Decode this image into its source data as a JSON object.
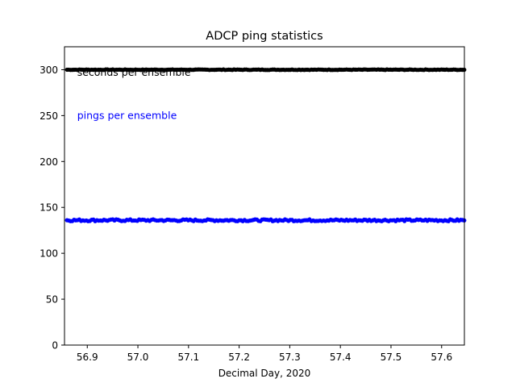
{
  "chart_data": {
    "type": "scatter",
    "title": "ADCP  ping statistics",
    "xlabel": "Decimal Day, 2020",
    "ylabel": "",
    "xlim": [
      56.855,
      57.645
    ],
    "ylim": [
      0,
      325
    ],
    "xticks": [
      56.9,
      57.0,
      57.1,
      57.2,
      57.3,
      57.4,
      57.5,
      57.6
    ],
    "xtick_labels": [
      "56.9",
      "57.0",
      "57.1",
      "57.2",
      "57.3",
      "57.4",
      "57.5",
      "57.6"
    ],
    "yticks": [
      0,
      50,
      100,
      150,
      200,
      250,
      300
    ],
    "ytick_labels": [
      "0",
      "50",
      "100",
      "150",
      "200",
      "250",
      "300"
    ],
    "grid": false,
    "x_start": 56.86,
    "x_end": 57.645,
    "series": [
      {
        "name": "seconds per ensemble",
        "color": "#000000",
        "value": 300,
        "jitter": 0.3
      },
      {
        "name": "pings per ensemble",
        "color": "#0000ff",
        "value": 136,
        "jitter": 1.0
      }
    ],
    "annotations": [
      {
        "text": "seconds per ensemble",
        "color": "#000000",
        "x": 56.88,
        "y": 297
      },
      {
        "text": "pings per ensemble",
        "color": "#0000ff",
        "x": 56.88,
        "y": 250
      }
    ]
  }
}
